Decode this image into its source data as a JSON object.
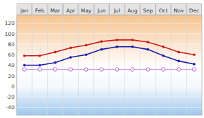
{
  "chart_data": {
    "type": "line",
    "categories": [
      "Jan",
      "Feb",
      "Mar",
      "Apr",
      "May",
      "Jun",
      "Jul",
      "Aug",
      "Sep",
      "Oct",
      "Nov",
      "Dec"
    ],
    "series": [
      {
        "color": "#cc1a1a",
        "marker": "circle",
        "line_style": "solid",
        "values": [
          58,
          58,
          65,
          73,
          78,
          85,
          88,
          88,
          84,
          75,
          65,
          60
        ]
      },
      {
        "color": "#1a1aaa",
        "marker": "circle",
        "line_style": "solid",
        "values": [
          40,
          40,
          45,
          55,
          60,
          70,
          75,
          75,
          70,
          58,
          48,
          42
        ]
      },
      {
        "color": "#b060e0",
        "marker": "open-circle",
        "line_style": "solid",
        "values": [
          32,
          32,
          32,
          32,
          32,
          32,
          32,
          32,
          32,
          32,
          32,
          32
        ]
      }
    ],
    "ylim": [
      -55,
      135
    ],
    "yticks": [
      -40,
      -20,
      0,
      20,
      40,
      60,
      80,
      100,
      120
    ],
    "grid": true
  }
}
